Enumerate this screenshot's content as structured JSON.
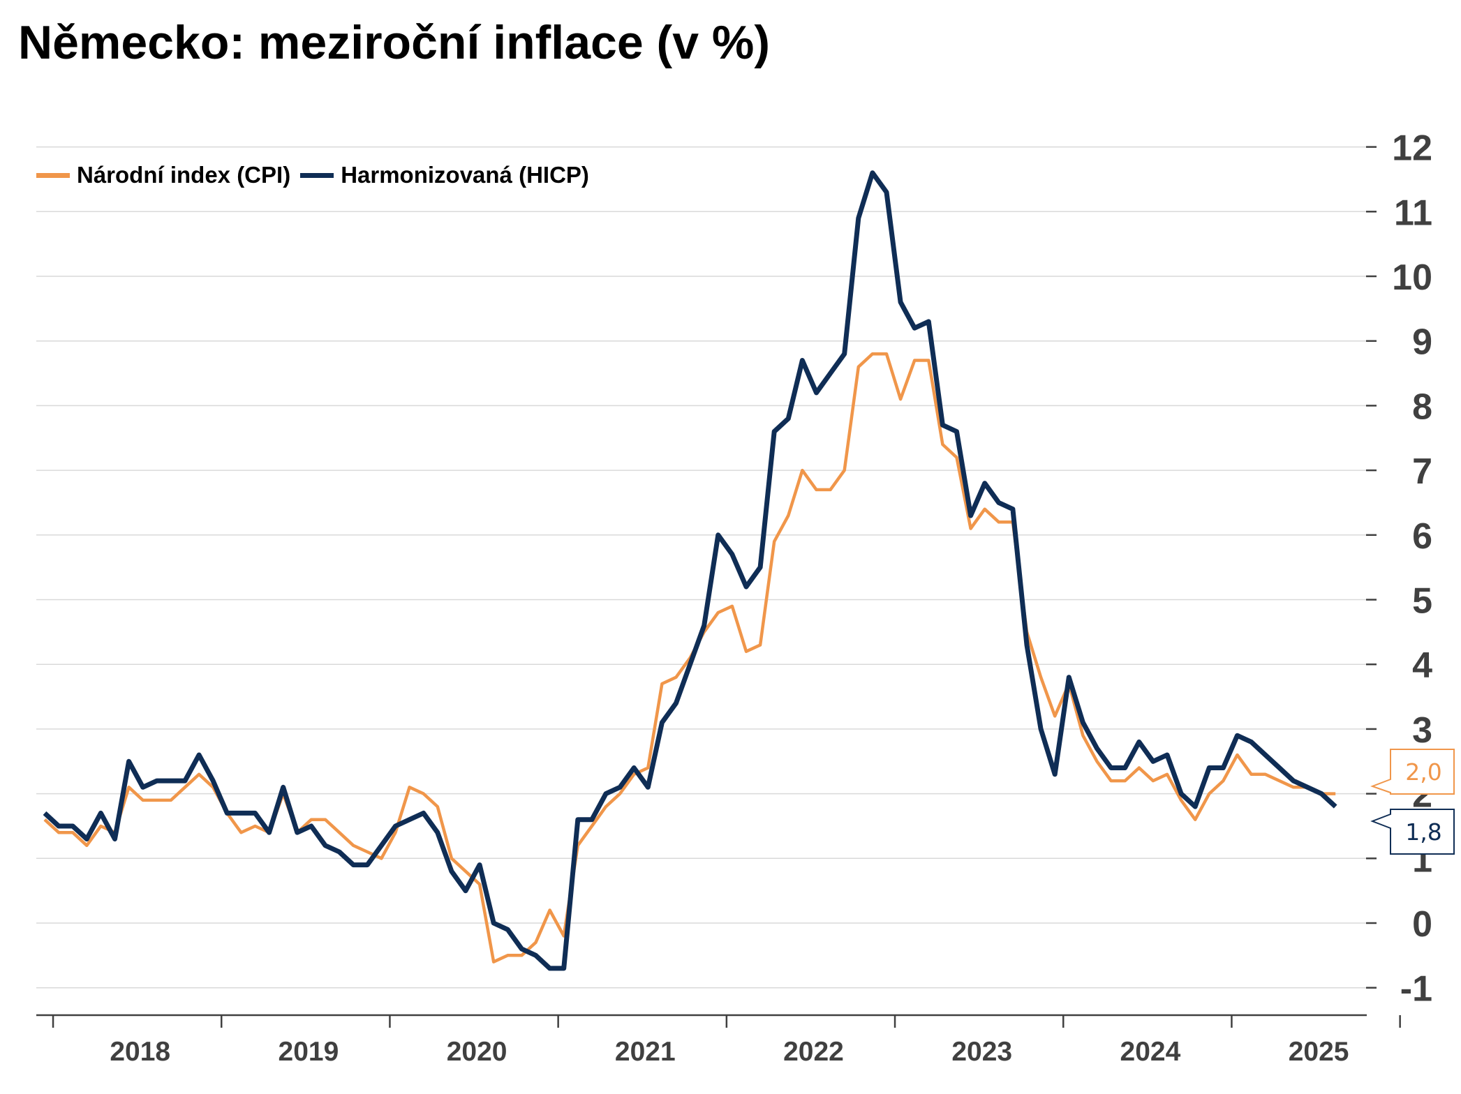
{
  "title": "Německo: meziroční inflace (v %)",
  "colors": {
    "cpi": "#F0964A",
    "hicp": "#0F2D55",
    "grid": "#D9D9D9",
    "axis": "#404040"
  },
  "chart_data": {
    "type": "line",
    "title": "Německo: meziroční inflace (v %)",
    "xlabel": "",
    "ylabel": "",
    "ylim": [
      -1,
      12
    ],
    "yticks": [
      -1,
      0,
      1,
      2,
      3,
      4,
      5,
      6,
      7,
      8,
      9,
      10,
      11,
      12
    ],
    "axis_side": "right",
    "grid": true,
    "legend_position": "top-left",
    "x_start": "2017-12",
    "x_step": "month",
    "year_labels": [
      "2018",
      "2019",
      "2020",
      "2021",
      "2022",
      "2023",
      "2024",
      "2025"
    ],
    "series": [
      {
        "name": "Národní index (CPI)",
        "color": "#F0964A",
        "end_label": "2,0",
        "values": [
          1.6,
          1.4,
          1.4,
          1.2,
          1.5,
          1.4,
          2.1,
          1.9,
          1.9,
          1.9,
          2.1,
          2.3,
          2.1,
          1.7,
          1.4,
          1.5,
          1.4,
          2.0,
          1.4,
          1.6,
          1.6,
          1.4,
          1.2,
          1.1,
          1.0,
          1.4,
          2.1,
          2.0,
          1.8,
          1.0,
          0.8,
          0.6,
          -0.6,
          -0.5,
          -0.5,
          -0.3,
          0.2,
          -0.2,
          1.2,
          1.5,
          1.8,
          2.0,
          2.3,
          2.4,
          3.7,
          3.8,
          4.1,
          4.5,
          4.8,
          4.9,
          4.2,
          4.3,
          5.9,
          6.3,
          7.0,
          6.7,
          6.7,
          7.0,
          8.6,
          8.8,
          8.8,
          8.1,
          8.7,
          8.7,
          7.4,
          7.2,
          6.1,
          6.4,
          6.2,
          6.2,
          4.5,
          3.8,
          3.2,
          3.7,
          2.9,
          2.5,
          2.2,
          2.2,
          2.4,
          2.2,
          2.3,
          1.9,
          1.6,
          2.0,
          2.2,
          2.6,
          2.3,
          2.3,
          2.2,
          2.1,
          2.1,
          2.0,
          2.0
        ]
      },
      {
        "name": "Harmonizovaná (HICP)",
        "color": "#0F2D55",
        "end_label": "1,8",
        "values": [
          1.7,
          1.5,
          1.5,
          1.3,
          1.7,
          1.3,
          2.5,
          2.1,
          2.2,
          2.2,
          2.2,
          2.6,
          2.2,
          1.7,
          1.7,
          1.7,
          1.4,
          2.1,
          1.4,
          1.5,
          1.2,
          1.1,
          0.9,
          0.9,
          1.2,
          1.5,
          1.6,
          1.7,
          1.4,
          0.8,
          0.5,
          0.9,
          0.0,
          -0.1,
          -0.4,
          -0.5,
          -0.7,
          -0.7,
          1.6,
          1.6,
          2.0,
          2.1,
          2.4,
          2.1,
          3.1,
          3.4,
          4.0,
          4.6,
          6.0,
          5.7,
          5.2,
          5.5,
          7.6,
          7.8,
          8.7,
          8.2,
          8.5,
          8.8,
          10.9,
          11.6,
          11.3,
          9.6,
          9.2,
          9.3,
          7.7,
          7.6,
          6.3,
          6.8,
          6.5,
          6.4,
          4.3,
          3.0,
          2.3,
          3.8,
          3.1,
          2.7,
          2.4,
          2.4,
          2.8,
          2.5,
          2.6,
          2.0,
          1.8,
          2.4,
          2.4,
          2.9,
          2.8,
          2.6,
          2.4,
          2.2,
          2.1,
          2.0,
          1.8
        ]
      }
    ]
  }
}
